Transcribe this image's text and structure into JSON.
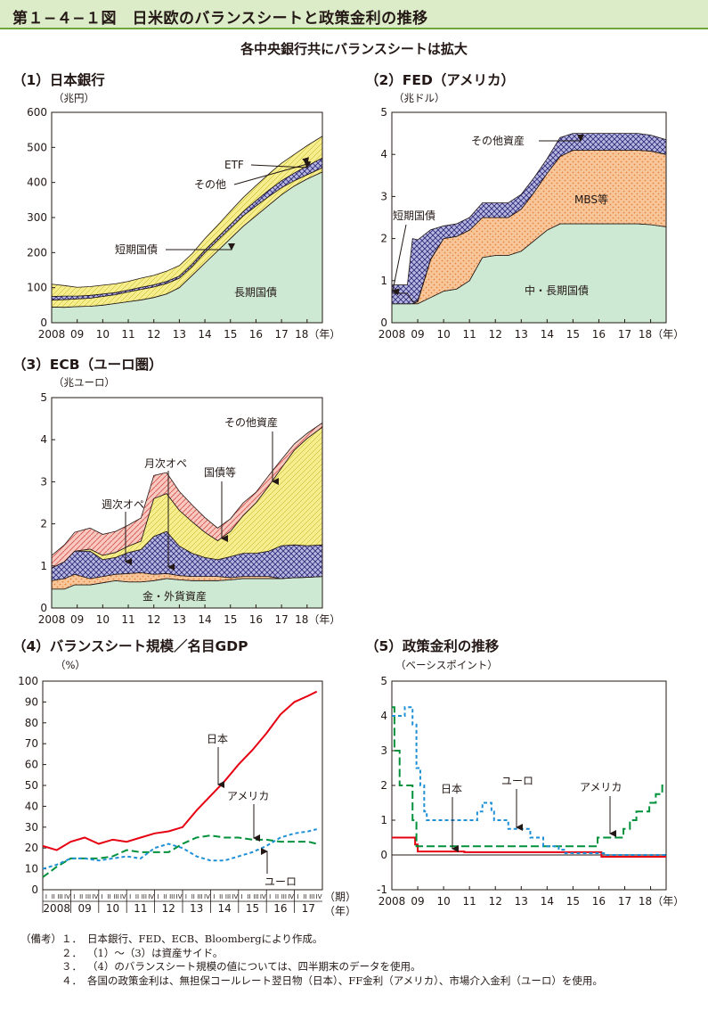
{
  "figure": {
    "title": "第１−４−１図　日米欧のバランスシートと政策金利の推移",
    "subtitle": "各中央銀行共にバランスシートは拡大"
  },
  "notes": {
    "label": "（備考）",
    "items": [
      {
        "num": "１．",
        "text": "日本銀行、FED、ECB、Bloombergにより作成。"
      },
      {
        "num": "２．",
        "text": "（1）〜（3）は資産サイド。"
      },
      {
        "num": "３．",
        "text": "（4）のバランスシート規模の値については、四半期末のデータを使用。"
      },
      {
        "num": "４．",
        "text": "各国の政策金利は、無担保コールレート翌日物（日本）、FF金利（アメリカ）、市場介入金利（ユーロ）を使用。"
      }
    ]
  },
  "colors": {
    "green_fill": "#cde8d3",
    "orange_fill": "#f7c69a",
    "orange_dot": "#e8833a",
    "yellow_fill": "#f6ee8e",
    "navy_fill": "#b9b8e2",
    "navy_hatch": "#2e2c78",
    "pink_fill": "#f7c9c0",
    "pink_hatch": "#d9534f",
    "red_line": "#e60012",
    "green_line": "#00913a",
    "blue_line": "#1f8fd6"
  },
  "chart_data": [
    {
      "id": "boj",
      "type": "area",
      "title": "（1）日本銀行",
      "ylabel": "（兆円）",
      "x_tick_labels": [
        "2008",
        "09",
        "10",
        "11",
        "12",
        "13",
        "14",
        "15",
        "16",
        "17",
        "18（年）"
      ],
      "y_tick_labels": [
        "0",
        "100",
        "200",
        "300",
        "400",
        "500",
        "600"
      ],
      "xlim": [
        2008.0,
        2018.6
      ],
      "ylim": [
        0,
        600
      ],
      "x": [
        2008.0,
        2008.5,
        2009.0,
        2009.5,
        2010.0,
        2010.5,
        2011.0,
        2011.5,
        2012.0,
        2012.5,
        2013.0,
        2013.5,
        2014.0,
        2014.5,
        2015.0,
        2015.5,
        2016.0,
        2016.5,
        2017.0,
        2017.5,
        2018.0,
        2018.6
      ],
      "stacked_series": [
        {
          "name": "長期国債",
          "values": [
            45,
            44,
            46,
            47,
            50,
            55,
            60,
            65,
            72,
            82,
            100,
            135,
            170,
            205,
            240,
            275,
            305,
            335,
            365,
            390,
            410,
            430
          ]
        },
        {
          "name": "短期国債",
          "values": [
            20,
            22,
            22,
            23,
            25,
            25,
            28,
            30,
            30,
            30,
            27,
            25,
            30,
            30,
            30,
            30,
            28,
            25,
            20,
            15,
            12,
            12
          ]
        },
        {
          "name": "その他",
          "values": [
            10,
            10,
            8,
            8,
            7,
            6,
            5,
            6,
            6,
            6,
            6,
            7,
            7,
            8,
            10,
            12,
            15,
            18,
            20,
            22,
            25,
            28
          ]
        },
        {
          "name": "ETF",
          "values": [
            35,
            30,
            25,
            25,
            25,
            25,
            25,
            26,
            27,
            29,
            30,
            30,
            33,
            35,
            38,
            40,
            43,
            46,
            50,
            53,
            58,
            62
          ]
        }
      ],
      "annotations": [
        "ETF",
        "その他",
        "短期国債",
        "長期国債"
      ]
    },
    {
      "id": "fed",
      "type": "area",
      "title": "（2）FED（アメリカ）",
      "ylabel": "（兆ドル）",
      "x_tick_labels": [
        "2008",
        "09",
        "10",
        "11",
        "12",
        "13",
        "14",
        "15",
        "16",
        "17",
        "18（年）"
      ],
      "y_tick_labels": [
        "0",
        "1",
        "2",
        "3",
        "4",
        "5"
      ],
      "xlim": [
        2008.0,
        2018.6
      ],
      "ylim": [
        0,
        5
      ],
      "x": [
        2008.0,
        2008.6,
        2008.8,
        2009.0,
        2009.5,
        2010.0,
        2010.5,
        2011.0,
        2011.5,
        2012.0,
        2012.5,
        2013.0,
        2013.5,
        2014.0,
        2014.5,
        2015.0,
        2015.5,
        2016.0,
        2016.5,
        2017.0,
        2017.5,
        2018.0,
        2018.6
      ],
      "stacked_series": [
        {
          "name": "中・長期国債",
          "values": [
            0.45,
            0.45,
            0.45,
            0.45,
            0.6,
            0.75,
            0.8,
            1.0,
            1.55,
            1.6,
            1.6,
            1.7,
            1.95,
            2.2,
            2.35,
            2.35,
            2.35,
            2.35,
            2.35,
            2.35,
            2.35,
            2.33,
            2.28
          ]
        },
        {
          "name": "MBS等",
          "values": [
            0.0,
            0.0,
            0.0,
            0.05,
            0.9,
            1.25,
            1.25,
            1.2,
            0.95,
            0.9,
            0.9,
            1.0,
            1.15,
            1.35,
            1.6,
            1.75,
            1.75,
            1.75,
            1.75,
            1.75,
            1.75,
            1.75,
            1.72
          ]
        },
        {
          "name": "短期国債",
          "values": [
            0.25,
            0.25,
            0.05,
            0.02,
            0.01,
            0.0,
            0.0,
            0.0,
            0.0,
            0.0,
            0.0,
            0.0,
            0.0,
            0.0,
            0.0,
            0.0,
            0.0,
            0.0,
            0.0,
            0.0,
            0.0,
            0.0,
            0.0
          ]
        },
        {
          "name": "その他資産",
          "values": [
            0.2,
            0.2,
            1.5,
            1.45,
            0.7,
            0.3,
            0.3,
            0.3,
            0.35,
            0.35,
            0.35,
            0.35,
            0.35,
            0.35,
            0.45,
            0.4,
            0.4,
            0.4,
            0.4,
            0.4,
            0.4,
            0.38,
            0.35
          ]
        }
      ],
      "annotations": [
        "その他資産",
        "MBS等",
        "短期国債",
        "中・長期国債"
      ]
    },
    {
      "id": "ecb",
      "type": "area",
      "title": "（3）ECB（ユーロ圏）",
      "ylabel": "（兆ユーロ）",
      "x_tick_labels": [
        "2008",
        "09",
        "10",
        "11",
        "12",
        "13",
        "14",
        "15",
        "16",
        "17",
        "18（年）"
      ],
      "y_tick_labels": [
        "0",
        "1",
        "2",
        "3",
        "4",
        "5"
      ],
      "xlim": [
        2008.0,
        2018.6
      ],
      "ylim": [
        0,
        5
      ],
      "x": [
        2008.0,
        2008.5,
        2008.9,
        2009.5,
        2010.0,
        2010.5,
        2011.0,
        2011.5,
        2012.0,
        2012.5,
        2013.0,
        2013.5,
        2014.0,
        2014.5,
        2015.0,
        2015.5,
        2016.0,
        2016.5,
        2017.0,
        2017.5,
        2018.0,
        2018.6
      ],
      "stacked_series": [
        {
          "name": "金・外貨資産",
          "values": [
            0.45,
            0.45,
            0.55,
            0.55,
            0.6,
            0.65,
            0.62,
            0.62,
            0.65,
            0.7,
            0.67,
            0.65,
            0.65,
            0.65,
            0.67,
            0.7,
            0.7,
            0.7,
            0.7,
            0.72,
            0.73,
            0.75
          ]
        },
        {
          "name": "週次オペ",
          "values": [
            0.2,
            0.25,
            0.25,
            0.15,
            0.15,
            0.15,
            0.2,
            0.22,
            0.15,
            0.12,
            0.1,
            0.1,
            0.1,
            0.1,
            0.05,
            0.05,
            0.05,
            0.05,
            0.0,
            0.0,
            0.0,
            0.0
          ]
        },
        {
          "name": "月次オペ",
          "values": [
            0.3,
            0.4,
            0.55,
            0.65,
            0.4,
            0.4,
            0.5,
            0.55,
            0.9,
            1.0,
            0.7,
            0.55,
            0.45,
            0.4,
            0.5,
            0.55,
            0.55,
            0.6,
            0.78,
            0.78,
            0.75,
            0.75
          ]
        },
        {
          "name": "国債等",
          "values": [
            0.0,
            0.0,
            0.0,
            0.05,
            0.1,
            0.12,
            0.15,
            0.2,
            0.9,
            0.9,
            0.85,
            0.75,
            0.6,
            0.45,
            0.6,
            0.9,
            1.2,
            1.55,
            1.85,
            2.25,
            2.55,
            2.8
          ]
        },
        {
          "name": "その他資産",
          "values": [
            0.3,
            0.4,
            0.45,
            0.5,
            0.5,
            0.5,
            0.5,
            0.55,
            0.55,
            0.5,
            0.45,
            0.4,
            0.35,
            0.3,
            0.3,
            0.3,
            0.25,
            0.25,
            0.2,
            0.15,
            0.12,
            0.1
          ]
        }
      ],
      "annotations": [
        "その他資産",
        "月次オペ",
        "国債等",
        "週次オペ",
        "金・外貨資産"
      ]
    },
    {
      "id": "bs_gdp",
      "type": "line",
      "title": "（4）バランスシート規模／名目GDP",
      "ylabel": "（%）",
      "x_axis_note": [
        "（期）",
        "（年）"
      ],
      "quarter_tick_labels": [
        "I",
        "II",
        "III",
        "IV"
      ],
      "year_labels": [
        "2008",
        "09",
        "10",
        "11",
        "12",
        "13",
        "14",
        "15",
        "16",
        "17"
      ],
      "y_tick_labels": [
        "0",
        "10",
        "20",
        "30",
        "40",
        "50",
        "60",
        "70",
        "80",
        "90",
        "100"
      ],
      "xlim": [
        2008.0,
        2018.0
      ],
      "ylim": [
        0,
        100
      ],
      "x": [
        2008.0,
        2008.5,
        2009.0,
        2009.5,
        2010.0,
        2010.5,
        2011.0,
        2011.5,
        2012.0,
        2012.5,
        2013.0,
        2013.5,
        2014.0,
        2014.5,
        2015.0,
        2015.5,
        2016.0,
        2016.5,
        2017.0,
        2017.5,
        2017.8
      ],
      "series": [
        {
          "name": "日本",
          "values": [
            21,
            19,
            23,
            25,
            22,
            24,
            23,
            25,
            27,
            28,
            30,
            38,
            45,
            52,
            60,
            67,
            75,
            84,
            90,
            93,
            95
          ]
        },
        {
          "name": "アメリカ",
          "values": [
            6,
            11,
            15,
            15,
            15,
            16,
            19,
            18,
            18,
            18,
            22,
            25,
            26,
            25,
            25,
            24,
            24,
            23,
            23,
            23,
            22
          ]
        },
        {
          "name": "ユーロ",
          "values": [
            10,
            12,
            15,
            15,
            14,
            15,
            16,
            15,
            20,
            22,
            20,
            16,
            14,
            14,
            16,
            18,
            21,
            25,
            27,
            28,
            29
          ]
        }
      ]
    },
    {
      "id": "policy_rate",
      "type": "line",
      "title": "（5）政策金利の推移",
      "ylabel": "（ベーシスポイント）",
      "x_tick_labels": [
        "2008",
        "09",
        "10",
        "11",
        "12",
        "13",
        "14",
        "15",
        "16",
        "17",
        "18（年）"
      ],
      "y_tick_labels": [
        "-1",
        "0",
        "1",
        "2",
        "3",
        "4",
        "5"
      ],
      "xlim": [
        2008.0,
        2018.6
      ],
      "ylim": [
        -1,
        5
      ],
      "series": [
        {
          "name": "日本",
          "step": true,
          "x": [
            2008.0,
            2008.9,
            2009.0,
            2010.8,
            2016.1,
            2018.6
          ],
          "values": [
            0.5,
            0.3,
            0.1,
            0.08,
            -0.05,
            -0.05
          ]
        },
        {
          "name": "アメリカ",
          "step": true,
          "x": [
            2008.0,
            2008.1,
            2008.3,
            2008.8,
            2008.95,
            2015.95,
            2016.95,
            2017.2,
            2017.45,
            2017.95,
            2018.2,
            2018.45,
            2018.6
          ],
          "values": [
            4.25,
            3.0,
            2.0,
            1.0,
            0.25,
            0.5,
            0.75,
            1.0,
            1.25,
            1.5,
            1.75,
            2.0,
            2.0
          ]
        },
        {
          "name": "ユーロ",
          "step": true,
          "x": [
            2008.0,
            2008.5,
            2008.8,
            2008.95,
            2009.1,
            2009.25,
            2009.35,
            2011.3,
            2011.5,
            2011.85,
            2011.95,
            2012.5,
            2013.35,
            2013.85,
            2014.45,
            2014.7,
            2016.2,
            2018.6
          ],
          "values": [
            4.0,
            4.25,
            3.75,
            2.5,
            2.0,
            1.25,
            1.0,
            1.25,
            1.5,
            1.25,
            1.0,
            0.75,
            0.5,
            0.25,
            0.15,
            0.05,
            0.0,
            0.0
          ]
        }
      ],
      "annotations": [
        "日本",
        "ユーロ",
        "アメリカ"
      ]
    }
  ]
}
